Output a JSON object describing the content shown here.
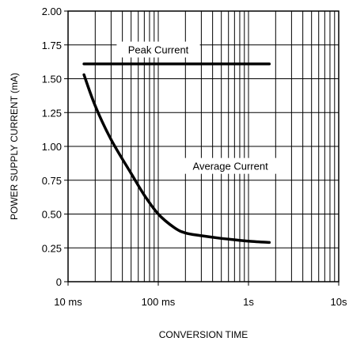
{
  "chart_data": {
    "type": "line",
    "xlabel": "CONVERSION TIME",
    "ylabel": "POWER SUPPLY CURRENT (mA)",
    "x_scale": "log",
    "xlim": [
      "10 ms",
      "10s"
    ],
    "ylim": [
      0,
      2.0
    ],
    "x_ticks": [
      "10 ms",
      "100 ms",
      "1s",
      "10s"
    ],
    "y_ticks": [
      "0",
      "0.25",
      "0.50",
      "0.75",
      "1.00",
      "1.25",
      "1.50",
      "1.75",
      "2.00"
    ],
    "grid": {
      "vertical": "log-minor",
      "horizontal": true
    },
    "series": [
      {
        "name": "Peak Current",
        "x": [
          "15 ms",
          "1.7s"
        ],
        "y": [
          1.61,
          1.61
        ]
      },
      {
        "name": "Average Current",
        "x": [
          "15 ms",
          "20 ms",
          "30 ms",
          "50 ms",
          "70 ms",
          "100 ms",
          "150 ms",
          "200 ms",
          "300 ms",
          "500 ms",
          "700 ms",
          "1s",
          "1.7s"
        ],
        "y": [
          1.53,
          1.3,
          1.05,
          0.8,
          0.64,
          0.5,
          0.4,
          0.36,
          0.34,
          0.32,
          0.31,
          0.3,
          0.29
        ]
      }
    ]
  }
}
